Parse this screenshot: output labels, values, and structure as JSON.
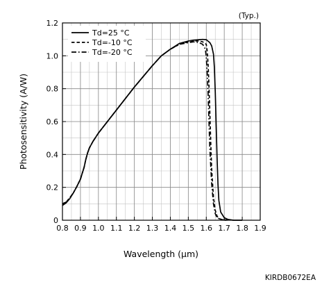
{
  "chart_data": {
    "type": "line",
    "title": "",
    "note": "(Typ.)",
    "code": "KIRDB0672EA",
    "xlabel": "Wavelength (μm)",
    "ylabel": "Photosensitivity (A/W)",
    "xlim": [
      0.8,
      1.9
    ],
    "ylim": [
      0,
      1.2
    ],
    "x_major_ticks": [
      0.8,
      0.9,
      1.0,
      1.1,
      1.2,
      1.3,
      1.4,
      1.5,
      1.6,
      1.7,
      1.8,
      1.9
    ],
    "x_tick_labels": [
      "0.8",
      "0.9",
      "1.0",
      "1.1",
      "1.2",
      "1.3",
      "1.4",
      "1.5",
      "1.6",
      "1.7",
      "1.8",
      "1.9"
    ],
    "y_major_ticks": [
      0,
      0.2,
      0.4,
      0.6,
      0.8,
      1.0,
      1.2
    ],
    "y_tick_labels": [
      "0",
      "0.2",
      "0.4",
      "0.6",
      "0.8",
      "1.0",
      "1.2"
    ],
    "x_minor_step": 0.05,
    "y_minor_step": 0.1,
    "grid": true,
    "legend_position": "top-left",
    "series": [
      {
        "name": "Td=25 °C",
        "style": "solid",
        "x": [
          0.8,
          0.82,
          0.84,
          0.86,
          0.88,
          0.9,
          0.92,
          0.93,
          0.94,
          0.95,
          0.97,
          1.0,
          1.05,
          1.1,
          1.15,
          1.2,
          1.25,
          1.3,
          1.35,
          1.4,
          1.45,
          1.5,
          1.53,
          1.56,
          1.58,
          1.6,
          1.62,
          1.63,
          1.64,
          1.645,
          1.65,
          1.655,
          1.66,
          1.665,
          1.67,
          1.68,
          1.7,
          1.72,
          1.75,
          1.8
        ],
        "y": [
          0.09,
          0.105,
          0.13,
          0.165,
          0.205,
          0.25,
          0.32,
          0.37,
          0.41,
          0.44,
          0.48,
          0.53,
          0.6,
          0.67,
          0.74,
          0.81,
          0.875,
          0.94,
          1.0,
          1.04,
          1.075,
          1.09,
          1.095,
          1.098,
          1.1,
          1.098,
          1.08,
          1.06,
          1.01,
          0.93,
          0.78,
          0.58,
          0.38,
          0.22,
          0.12,
          0.05,
          0.015,
          0.005,
          0.0,
          0.0
        ]
      },
      {
        "name": "Td=-10 °C",
        "style": "dashed",
        "x": [
          0.8,
          0.82,
          0.84,
          0.86,
          0.88,
          0.9,
          0.92,
          0.93,
          0.94,
          0.95,
          0.97,
          1.0,
          1.05,
          1.1,
          1.15,
          1.2,
          1.25,
          1.3,
          1.35,
          1.4,
          1.45,
          1.5,
          1.53,
          1.56,
          1.58,
          1.6,
          1.605,
          1.61,
          1.615,
          1.62,
          1.625,
          1.63,
          1.64,
          1.65,
          1.66,
          1.67,
          1.69,
          1.72
        ],
        "y": [
          0.1,
          0.11,
          0.135,
          0.165,
          0.205,
          0.25,
          0.32,
          0.37,
          0.41,
          0.44,
          0.48,
          0.53,
          0.6,
          0.67,
          0.74,
          0.81,
          0.875,
          0.94,
          1.0,
          1.04,
          1.07,
          1.085,
          1.09,
          1.09,
          1.085,
          1.07,
          1.03,
          0.95,
          0.82,
          0.65,
          0.47,
          0.31,
          0.14,
          0.06,
          0.025,
          0.01,
          0.003,
          0.0
        ]
      },
      {
        "name": "Td=-20 °C",
        "style": "dashdot",
        "x": [
          0.8,
          0.82,
          0.84,
          0.86,
          0.88,
          0.9,
          0.92,
          0.93,
          0.94,
          0.95,
          0.97,
          1.0,
          1.05,
          1.1,
          1.15,
          1.2,
          1.25,
          1.3,
          1.35,
          1.4,
          1.45,
          1.5,
          1.53,
          1.56,
          1.58,
          1.595,
          1.6,
          1.605,
          1.61,
          1.615,
          1.62,
          1.63,
          1.64,
          1.65,
          1.66,
          1.68,
          1.71
        ],
        "y": [
          0.1,
          0.11,
          0.135,
          0.165,
          0.205,
          0.25,
          0.32,
          0.37,
          0.41,
          0.44,
          0.48,
          0.53,
          0.6,
          0.67,
          0.74,
          0.81,
          0.875,
          0.94,
          1.0,
          1.04,
          1.07,
          1.08,
          1.085,
          1.08,
          1.07,
          1.04,
          0.99,
          0.9,
          0.77,
          0.6,
          0.43,
          0.22,
          0.1,
          0.04,
          0.015,
          0.004,
          0.0
        ]
      }
    ]
  }
}
